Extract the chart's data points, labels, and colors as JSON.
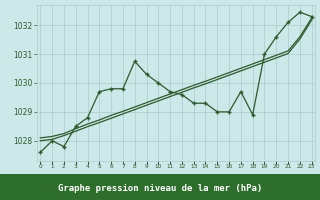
{
  "title": "Graphe pression niveau de la mer (hPa)",
  "bg_color": "#cce8e8",
  "plot_bg_color": "#cce8e8",
  "label_bar_color": "#2d6e2d",
  "line_color": "#2d5a2d",
  "grid_color": "#aacccc",
  "x_ticks": [
    0,
    1,
    2,
    3,
    4,
    5,
    6,
    7,
    8,
    9,
    10,
    11,
    12,
    13,
    14,
    15,
    16,
    17,
    18,
    19,
    20,
    21,
    22,
    23
  ],
  "y_ticks": [
    1028,
    1029,
    1030,
    1031,
    1032
  ],
  "ylim": [
    1027.3,
    1032.7
  ],
  "xlim": [
    -0.3,
    23.3
  ],
  "main_line": [
    1027.6,
    1028.0,
    1027.8,
    1028.5,
    1028.8,
    1029.7,
    1029.8,
    1029.8,
    1030.75,
    1030.3,
    1030.0,
    1029.7,
    1029.6,
    1029.3,
    1029.3,
    1029.0,
    1029.0,
    1029.7,
    1028.9,
    1031.0,
    1031.6,
    1032.1,
    1032.45,
    1032.3
  ],
  "trend_line1": [
    1028.1,
    1028.15,
    1028.25,
    1028.42,
    1028.58,
    1028.72,
    1028.88,
    1029.02,
    1029.17,
    1029.32,
    1029.47,
    1029.62,
    1029.77,
    1029.92,
    1030.06,
    1030.21,
    1030.36,
    1030.51,
    1030.66,
    1030.81,
    1030.96,
    1031.11,
    1031.6,
    1032.25
  ],
  "trend_line2": [
    1028.0,
    1028.05,
    1028.18,
    1028.33,
    1028.49,
    1028.63,
    1028.78,
    1028.93,
    1029.08,
    1029.23,
    1029.38,
    1029.53,
    1029.68,
    1029.83,
    1029.97,
    1030.12,
    1030.27,
    1030.42,
    1030.57,
    1030.72,
    1030.87,
    1031.02,
    1031.52,
    1032.18
  ]
}
